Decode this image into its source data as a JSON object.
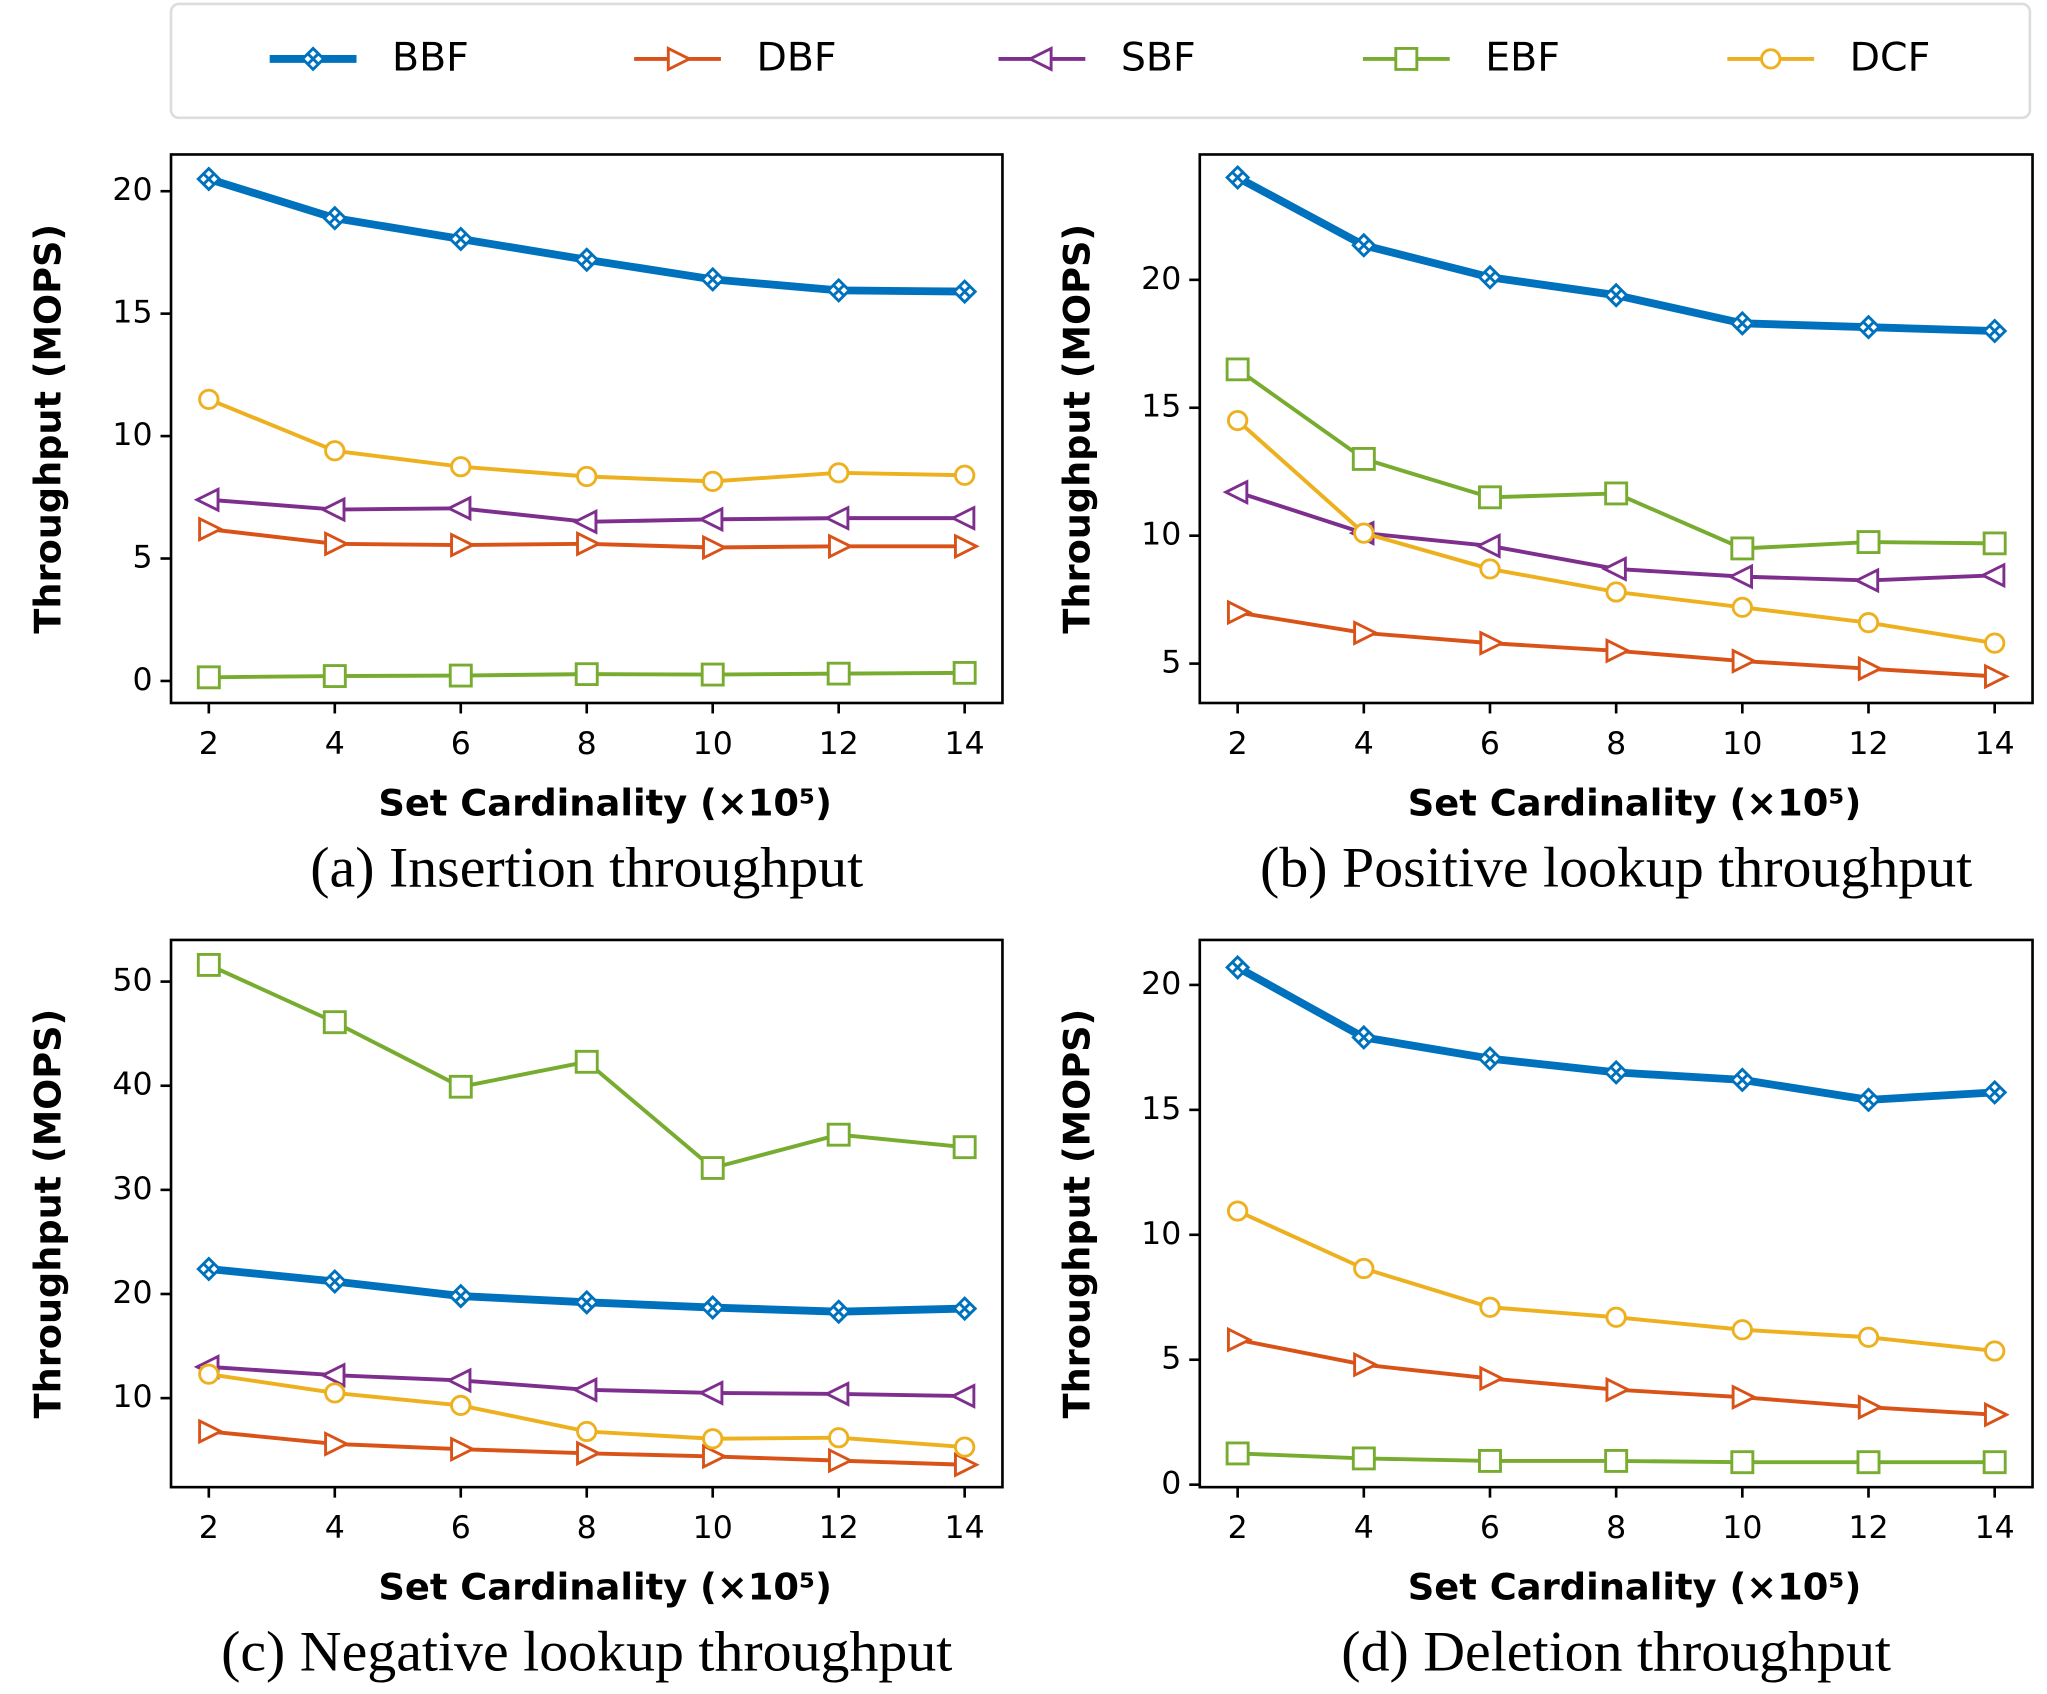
{
  "chart_data": [
    {
      "type": "line",
      "title": "(a) Insertion throughput",
      "xlabel": "Set Cardinality (×10⁵)",
      "ylabel": "Throughput (MOPS)",
      "x": [
        2,
        4,
        6,
        8,
        10,
        12,
        14
      ],
      "xlim": [
        1.4,
        14.6
      ],
      "xticks": [
        2,
        4,
        6,
        8,
        10,
        12,
        14
      ],
      "ylim": [
        -0.9,
        21.5
      ],
      "yticks": [
        0,
        5,
        10,
        15,
        20
      ],
      "series": [
        {
          "name": "BBF",
          "color": "#0072bd",
          "marker": "x-diamond",
          "values": [
            20.5,
            18.9,
            18.05,
            17.2,
            16.4,
            15.95,
            15.9
          ]
        },
        {
          "name": "DBF",
          "color": "#d95319",
          "marker": "triangle-right",
          "values": [
            6.2,
            5.6,
            5.55,
            5.6,
            5.45,
            5.5,
            5.5
          ]
        },
        {
          "name": "SBF",
          "color": "#7e2f8e",
          "marker": "triangle-left",
          "values": [
            7.4,
            7.0,
            7.05,
            6.5,
            6.6,
            6.65,
            6.65
          ]
        },
        {
          "name": "EBF",
          "color": "#77ac30",
          "marker": "square",
          "values": [
            0.15,
            0.2,
            0.22,
            0.28,
            0.26,
            0.3,
            0.33
          ]
        },
        {
          "name": "DCF",
          "color": "#edb120",
          "marker": "circle",
          "values": [
            11.5,
            9.4,
            8.75,
            8.35,
            8.15,
            8.5,
            8.4
          ]
        }
      ]
    },
    {
      "type": "line",
      "title": "(b) Positive lookup throughput",
      "xlabel": "Set Cardinality (×10⁵)",
      "ylabel": "Throughput (MOPS)",
      "x": [
        2,
        4,
        6,
        8,
        10,
        12,
        14
      ],
      "xlim": [
        1.4,
        14.6
      ],
      "xticks": [
        2,
        4,
        6,
        8,
        10,
        12,
        14
      ],
      "ylim": [
        3.46,
        24.9
      ],
      "yticks": [
        5,
        10,
        15,
        20
      ],
      "series": [
        {
          "name": "BBF",
          "color": "#0072bd",
          "marker": "x-diamond",
          "values": [
            24.0,
            21.35,
            20.1,
            19.4,
            18.3,
            18.15,
            18.0
          ]
        },
        {
          "name": "DBF",
          "color": "#d95319",
          "marker": "triangle-right",
          "values": [
            7.0,
            6.2,
            5.8,
            5.5,
            5.1,
            4.8,
            4.5
          ]
        },
        {
          "name": "SBF",
          "color": "#7e2f8e",
          "marker": "triangle-left",
          "values": [
            11.7,
            10.1,
            9.6,
            8.7,
            8.4,
            8.25,
            8.45
          ]
        },
        {
          "name": "EBF",
          "color": "#77ac30",
          "marker": "square",
          "values": [
            16.5,
            13.0,
            11.5,
            11.65,
            9.5,
            9.75,
            9.7
          ]
        },
        {
          "name": "DCF",
          "color": "#edb120",
          "marker": "circle",
          "values": [
            14.5,
            10.1,
            8.7,
            7.8,
            7.2,
            6.6,
            5.8
          ]
        }
      ]
    },
    {
      "type": "line",
      "title": "(c) Negative lookup throughput",
      "xlabel": "Set Cardinality (×10⁵)",
      "ylabel": "Throughput (MOPS)",
      "x": [
        2,
        4,
        6,
        8,
        10,
        12,
        14
      ],
      "xlim": [
        1.4,
        14.6
      ],
      "xticks": [
        2,
        4,
        6,
        8,
        10,
        12,
        14
      ],
      "ylim": [
        1.45,
        54.0
      ],
      "yticks": [
        10,
        20,
        30,
        40,
        50
      ],
      "series": [
        {
          "name": "BBF",
          "color": "#0072bd",
          "marker": "x-diamond",
          "values": [
            22.4,
            21.2,
            19.8,
            19.2,
            18.7,
            18.3,
            18.6
          ]
        },
        {
          "name": "DBF",
          "color": "#d95319",
          "marker": "triangle-right",
          "values": [
            6.8,
            5.6,
            5.1,
            4.7,
            4.4,
            4.0,
            3.6
          ]
        },
        {
          "name": "SBF",
          "color": "#7e2f8e",
          "marker": "triangle-left",
          "values": [
            13.0,
            12.2,
            11.7,
            10.8,
            10.5,
            10.4,
            10.2
          ]
        },
        {
          "name": "EBF",
          "color": "#77ac30",
          "marker": "square",
          "values": [
            51.6,
            46.1,
            39.9,
            42.3,
            32.1,
            35.3,
            34.1
          ]
        },
        {
          "name": "DCF",
          "color": "#edb120",
          "marker": "circle",
          "values": [
            12.3,
            10.5,
            9.3,
            6.8,
            6.1,
            6.2,
            5.3
          ]
        }
      ]
    },
    {
      "type": "line",
      "title": "(d) Deletion throughput",
      "xlabel": "Set Cardinality (×10⁵)",
      "ylabel": "Throughput (MOPS)",
      "x": [
        2,
        4,
        6,
        8,
        10,
        12,
        14
      ],
      "xlim": [
        1.4,
        14.6
      ],
      "xticks": [
        2,
        4,
        6,
        8,
        10,
        12,
        14
      ],
      "ylim": [
        -0.1,
        21.8
      ],
      "yticks": [
        0,
        5,
        10,
        15,
        20
      ],
      "series": [
        {
          "name": "BBF",
          "color": "#0072bd",
          "marker": "x-diamond",
          "values": [
            20.7,
            17.9,
            17.05,
            16.5,
            16.2,
            15.4,
            15.7
          ]
        },
        {
          "name": "DBF",
          "color": "#d95319",
          "marker": "triangle-right",
          "values": [
            5.8,
            4.8,
            4.25,
            3.8,
            3.5,
            3.1,
            2.8
          ]
        },
        {
          "name": "SBF",
          "color": "#7e2f8e",
          "marker": "triangle-left",
          "values": [
            null,
            null,
            null,
            null,
            null,
            null,
            null
          ]
        },
        {
          "name": "EBF",
          "color": "#77ac30",
          "marker": "square",
          "values": [
            1.25,
            1.05,
            0.95,
            0.95,
            0.9,
            0.9,
            0.9
          ]
        },
        {
          "name": "DCF",
          "color": "#edb120",
          "marker": "circle",
          "values": [
            10.95,
            8.65,
            7.1,
            6.7,
            6.2,
            5.9,
            5.35
          ]
        }
      ]
    }
  ]
}
